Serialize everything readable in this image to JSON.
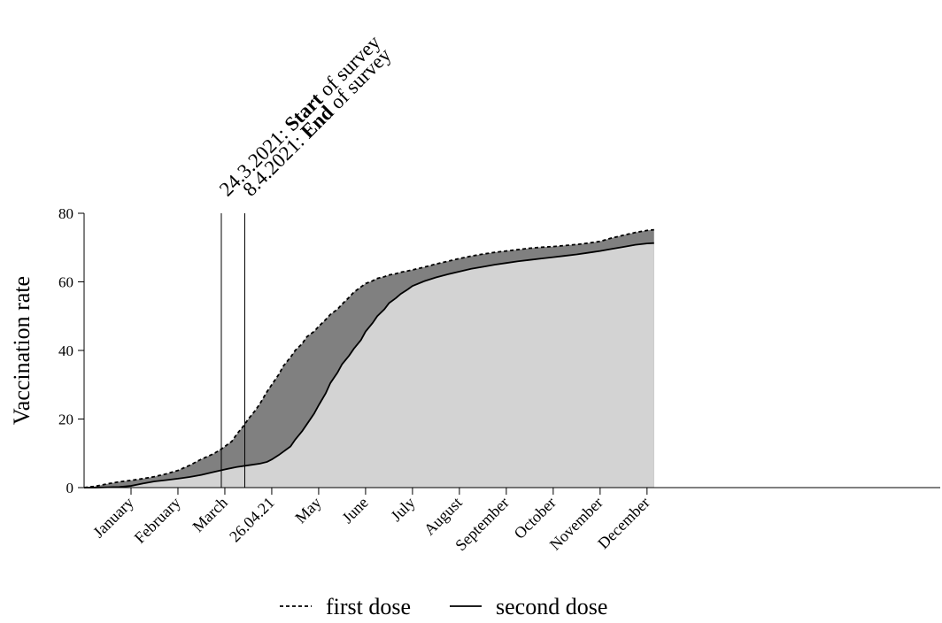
{
  "chart_data": {
    "type": "area",
    "title": "",
    "xlabel": "",
    "ylabel": "Vaccination rate",
    "ylim": [
      0,
      80
    ],
    "yticks": [
      "0",
      "20",
      "40",
      "60",
      "80"
    ],
    "xlim": [
      0,
      365
    ],
    "xticks": [
      {
        "label": "January",
        "x": 20
      },
      {
        "label": "February",
        "x": 40
      },
      {
        "label": "March",
        "x": 60
      },
      {
        "label": "26.04.21",
        "x": 80
      },
      {
        "label": "May",
        "x": 100
      },
      {
        "label": "June",
        "x": 120
      },
      {
        "label": "July",
        "x": 140
      },
      {
        "label": "August",
        "x": 160
      },
      {
        "label": "September",
        "x": 180
      },
      {
        "label": "October",
        "x": 200
      },
      {
        "label": "November",
        "x": 220
      },
      {
        "label": "December",
        "x": 240
      }
    ],
    "series": [
      {
        "name": "first dose",
        "line_style": "dashed",
        "fill": "#808080",
        "x": [
          0,
          5,
          10,
          15,
          20,
          25,
          30,
          35,
          40,
          45,
          50,
          55,
          58,
          60,
          63,
          65,
          68,
          70,
          73,
          75,
          78,
          80,
          83,
          85,
          88,
          90,
          93,
          95,
          98,
          100,
          103,
          105,
          108,
          110,
          113,
          115,
          118,
          120,
          123,
          125,
          128,
          130,
          133,
          135,
          138,
          140,
          145,
          150,
          155,
          160,
          165,
          170,
          175,
          180,
          185,
          190,
          195,
          200,
          205,
          210,
          215,
          220,
          225,
          230,
          235,
          240,
          243
        ],
        "values": [
          0,
          0.4,
          1.1,
          1.7,
          2.1,
          2.6,
          3.2,
          4.0,
          5.0,
          6.5,
          8.3,
          9.8,
          11.0,
          12.0,
          13.5,
          15.5,
          18.0,
          20.0,
          22.5,
          24.5,
          28.0,
          30.0,
          33.0,
          35.5,
          38.0,
          40.0,
          42.0,
          44.0,
          45.5,
          47.0,
          49.0,
          50.5,
          52.0,
          53.5,
          55.5,
          57.0,
          58.5,
          59.5,
          60.3,
          61.0,
          61.5,
          62.0,
          62.4,
          62.8,
          63.2,
          63.5,
          64.3,
          65.2,
          66.0,
          66.8,
          67.5,
          68.1,
          68.6,
          69.0,
          69.4,
          69.8,
          70.1,
          70.3,
          70.6,
          70.9,
          71.3,
          71.8,
          72.8,
          73.6,
          74.4,
          75.0,
          75.2
        ]
      },
      {
        "name": "second dose",
        "line_style": "solid",
        "fill": "#d3d3d3",
        "x": [
          0,
          5,
          10,
          15,
          20,
          25,
          30,
          35,
          40,
          45,
          50,
          55,
          60,
          65,
          70,
          75,
          78,
          80,
          83,
          85,
          88,
          90,
          93,
          95,
          98,
          100,
          103,
          105,
          108,
          110,
          113,
          115,
          118,
          120,
          123,
          125,
          128,
          130,
          133,
          135,
          138,
          140,
          145,
          150,
          155,
          160,
          165,
          170,
          175,
          180,
          185,
          190,
          195,
          200,
          205,
          210,
          215,
          220,
          225,
          230,
          235,
          240,
          243
        ],
        "values": [
          0,
          0,
          0.1,
          0.2,
          0.5,
          1.2,
          1.8,
          2.2,
          2.6,
          3.1,
          3.7,
          4.5,
          5.3,
          6.0,
          6.5,
          7.0,
          7.5,
          8.2,
          9.5,
          10.5,
          12.0,
          14.0,
          16.5,
          18.5,
          21.5,
          24.0,
          27.5,
          30.5,
          33.5,
          36.0,
          38.5,
          40.5,
          43.0,
          45.5,
          48.0,
          50.0,
          52.0,
          53.8,
          55.3,
          56.5,
          57.8,
          58.8,
          60.2,
          61.3,
          62.2,
          63.0,
          63.8,
          64.4,
          65.0,
          65.5,
          66.0,
          66.4,
          66.8,
          67.2,
          67.6,
          68.0,
          68.5,
          69.0,
          69.6,
          70.2,
          70.8,
          71.2,
          71.3
        ]
      }
    ],
    "annotations": [
      {
        "x": 58.5,
        "prefix": "24.3.2021: ",
        "bold": "Start",
        "suffix": " of survey"
      },
      {
        "x": 68.5,
        "prefix": "8.4.2021: ",
        "bold": "End",
        "suffix": " of survey"
      }
    ],
    "legend": {
      "position": "bottom",
      "first": "first dose",
      "second": "second dose"
    },
    "colors": {
      "first_fill": "#808080",
      "second_fill": "#d3d3d3",
      "line": "#000000",
      "background": "#ffffff"
    },
    "grid": false
  }
}
